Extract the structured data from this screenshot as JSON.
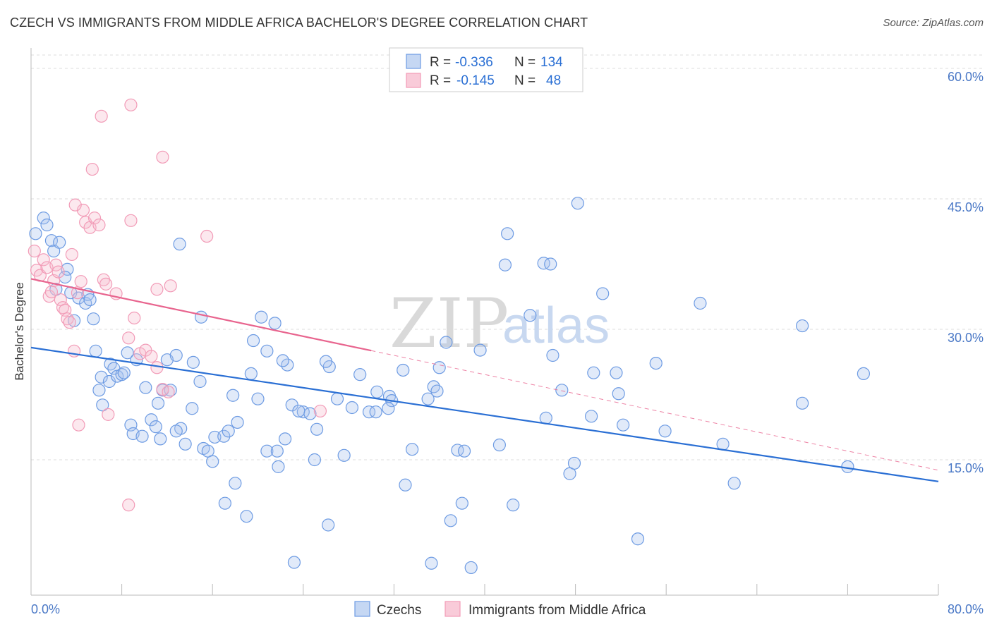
{
  "header": {
    "title": "CZECH VS IMMIGRANTS FROM MIDDLE AFRICA BACHELOR'S DEGREE CORRELATION CHART",
    "source": "Source: ZipAtlas.com"
  },
  "legend": {
    "rows": [
      {
        "r_label": "R =",
        "r_value": "-0.336",
        "n_label": "N =",
        "n_value": "134"
      },
      {
        "r_label": "R =",
        "r_value": "-0.145",
        "n_label": "N =",
        "n_value": "48"
      }
    ]
  },
  "watermark": {
    "zip": "ZIP",
    "atlas": "atlas"
  },
  "chart_data": {
    "type": "scatter",
    "title": "CZECH VS IMMIGRANTS FROM MIDDLE AFRICA BACHELOR'S DEGREE CORRELATION CHART",
    "xlabel": "",
    "ylabel": "Bachelor's Degree",
    "xlim": [
      0,
      80
    ],
    "ylim": [
      0,
      65
    ],
    "x_tick_labels": [
      "0.0%",
      "80.0%"
    ],
    "y_ticks": [
      15,
      30,
      45,
      60
    ],
    "y_tick_labels": [
      "15.0%",
      "30.0%",
      "45.0%",
      "60.0%"
    ],
    "grid": true,
    "legend_position": "top-center",
    "colors": {
      "czechs": "#6d9be3",
      "middle_africa": "#f29bb7",
      "czechs_line": "#2a6fd4",
      "africa_line": "#e8648e"
    },
    "series": [
      {
        "name": "Czechs",
        "R": -0.336,
        "N": 134,
        "trend": {
          "x": [
            0,
            80
          ],
          "y": [
            27.9,
            12.5
          ]
        },
        "points": [
          [
            0.4,
            41
          ],
          [
            1.1,
            42.8
          ],
          [
            1.4,
            42
          ],
          [
            1.8,
            40.2
          ],
          [
            2,
            39
          ],
          [
            2.5,
            40
          ],
          [
            3.2,
            36.9
          ],
          [
            3,
            36
          ],
          [
            2.2,
            34.6
          ],
          [
            3.5,
            34.2
          ],
          [
            4.2,
            33.6
          ],
          [
            4.8,
            33
          ],
          [
            5,
            34
          ],
          [
            5.2,
            33.4
          ],
          [
            5.5,
            31.2
          ],
          [
            3.8,
            31
          ],
          [
            5.7,
            27.5
          ],
          [
            7,
            26
          ],
          [
            7.3,
            25.5
          ],
          [
            8.5,
            27.3
          ],
          [
            9.3,
            26.5
          ],
          [
            12,
            26.5
          ],
          [
            14.3,
            26.2
          ],
          [
            6.2,
            24.5
          ],
          [
            6.9,
            24
          ],
          [
            7.6,
            24.6
          ],
          [
            8,
            24.8
          ],
          [
            8.2,
            25
          ],
          [
            10.1,
            23.3
          ],
          [
            11.6,
            23
          ],
          [
            12.3,
            23
          ],
          [
            6,
            23
          ],
          [
            6.3,
            21.3
          ],
          [
            11.2,
            21.5
          ],
          [
            14.9,
            24
          ],
          [
            14.2,
            20.9
          ],
          [
            8.8,
            19
          ],
          [
            10.6,
            19.6
          ],
          [
            11,
            18.8
          ],
          [
            13.2,
            18.6
          ],
          [
            12.8,
            18.3
          ],
          [
            9,
            18
          ],
          [
            9.8,
            17.7
          ],
          [
            11.4,
            17.4
          ],
          [
            13.6,
            16.8
          ],
          [
            15.2,
            16.3
          ],
          [
            15.6,
            16
          ],
          [
            16.2,
            17.6
          ],
          [
            17,
            17.7
          ],
          [
            17.4,
            18.3
          ],
          [
            18.2,
            19.3
          ],
          [
            16,
            14.8
          ],
          [
            17.8,
            22.4
          ],
          [
            19.4,
            24.9
          ],
          [
            20,
            22
          ],
          [
            20.8,
            16
          ],
          [
            21.8,
            14.2
          ],
          [
            22.4,
            17.4
          ],
          [
            23,
            21.3
          ],
          [
            24,
            20.5
          ],
          [
            23.6,
            20.6
          ],
          [
            24.6,
            20.3
          ],
          [
            25.2,
            18.5
          ],
          [
            25,
            15
          ],
          [
            27,
            22
          ],
          [
            26.3,
            25.7
          ],
          [
            27.6,
            15.5
          ],
          [
            28.3,
            21
          ],
          [
            29,
            24.8
          ],
          [
            29.8,
            20.5
          ],
          [
            30.4,
            20.5
          ],
          [
            30.5,
            22.8
          ],
          [
            31.6,
            22.3
          ],
          [
            31.8,
            21.8
          ],
          [
            32.8,
            25.3
          ],
          [
            31.5,
            20.9
          ],
          [
            33.6,
            16.2
          ],
          [
            35,
            22
          ],
          [
            35.5,
            23.4
          ],
          [
            35.8,
            22.9
          ],
          [
            36,
            25.6
          ],
          [
            36.6,
            28.5
          ],
          [
            37.6,
            16.1
          ],
          [
            38.2,
            16
          ],
          [
            39.6,
            27.6
          ],
          [
            41.3,
            16.7
          ],
          [
            42,
            41
          ],
          [
            41.8,
            37.4
          ],
          [
            44,
            31.6
          ],
          [
            42.5,
            9.8
          ],
          [
            45.4,
            19.8
          ],
          [
            46,
            27
          ],
          [
            45.2,
            37.6
          ],
          [
            46.8,
            23
          ],
          [
            49.6,
            25
          ],
          [
            50.4,
            34.1
          ],
          [
            51.6,
            25
          ],
          [
            51.8,
            22.6
          ],
          [
            52.2,
            19
          ],
          [
            53.5,
            5.9
          ],
          [
            48.2,
            44.5
          ],
          [
            45.8,
            37.5
          ],
          [
            49.4,
            20
          ],
          [
            55.9,
            18.3
          ],
          [
            55.1,
            26.1
          ],
          [
            59,
            33
          ],
          [
            61,
            16.8
          ],
          [
            62,
            12.3
          ],
          [
            68,
            30.4
          ],
          [
            68,
            21.5
          ],
          [
            73.4,
            24.9
          ],
          [
            72,
            14.2
          ],
          [
            17.1,
            10
          ],
          [
            18,
            12.3
          ],
          [
            19,
            8.5
          ],
          [
            23.2,
            3.2
          ],
          [
            26.2,
            7.5
          ],
          [
            33,
            12.1
          ],
          [
            35.3,
            3.1
          ],
          [
            37,
            8
          ],
          [
            38.8,
            2.6
          ],
          [
            47.5,
            13.4
          ],
          [
            47.9,
            14.6
          ],
          [
            38,
            10
          ],
          [
            20.8,
            27.5
          ],
          [
            22.6,
            25.9
          ],
          [
            22.2,
            26.4
          ],
          [
            21.7,
            16
          ],
          [
            12.8,
            27
          ],
          [
            13.1,
            39.8
          ],
          [
            19.6,
            28.7
          ],
          [
            26,
            26.3
          ],
          [
            15,
            31.4
          ],
          [
            20.3,
            31.4
          ],
          [
            21.5,
            30.7
          ]
        ]
      },
      {
        "name": "Immigrants from Middle Africa",
        "R": -0.145,
        "N": 48,
        "trend": {
          "x": [
            0,
            80
          ],
          "y": [
            35.8,
            13.8
          ]
        },
        "trend_solid_to_x": 30,
        "points": [
          [
            0.3,
            39
          ],
          [
            0.5,
            36.8
          ],
          [
            0.8,
            36.2
          ],
          [
            1.1,
            38
          ],
          [
            1.4,
            37.1
          ],
          [
            1.6,
            33.8
          ],
          [
            1.8,
            34.3
          ],
          [
            2,
            35.6
          ],
          [
            2.2,
            37.4
          ],
          [
            2.4,
            36.6
          ],
          [
            2.6,
            33.4
          ],
          [
            2.8,
            32.5
          ],
          [
            3,
            32.2
          ],
          [
            3.2,
            31.2
          ],
          [
            3.4,
            30.8
          ],
          [
            3.6,
            38.6
          ],
          [
            4.1,
            34.2
          ],
          [
            4.6,
            43.7
          ],
          [
            4.8,
            42.3
          ],
          [
            5.2,
            41.7
          ],
          [
            5.6,
            42.8
          ],
          [
            6,
            42
          ],
          [
            6.4,
            35.7
          ],
          [
            4.4,
            35.5
          ],
          [
            6.6,
            35.2
          ],
          [
            7.5,
            34.1
          ],
          [
            8.6,
            29
          ],
          [
            9.1,
            31.3
          ],
          [
            9.6,
            27.2
          ],
          [
            10.1,
            27.6
          ],
          [
            10.6,
            26.9
          ],
          [
            11.1,
            25.6
          ],
          [
            11.6,
            23.1
          ],
          [
            12.1,
            22.8
          ],
          [
            3.9,
            44.3
          ],
          [
            5.4,
            48.4
          ],
          [
            6.2,
            54.5
          ],
          [
            8.8,
            55.8
          ],
          [
            11.6,
            49.8
          ],
          [
            15.5,
            40.7
          ],
          [
            8.8,
            42.5
          ],
          [
            11.1,
            34.6
          ],
          [
            12.3,
            35
          ],
          [
            3.8,
            27.5
          ],
          [
            4.2,
            19
          ],
          [
            6.8,
            20.2
          ],
          [
            8.6,
            9.8
          ],
          [
            25.5,
            20.6
          ]
        ]
      }
    ]
  },
  "bottom_legend": {
    "items": [
      "Czechs",
      "Immigrants from Middle Africa"
    ]
  }
}
